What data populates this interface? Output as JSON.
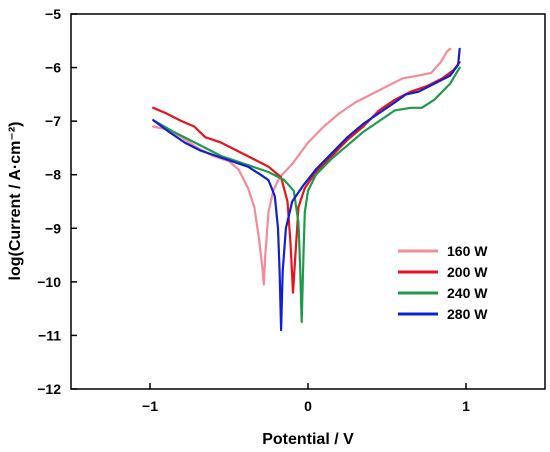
{
  "chart_data": {
    "type": "line",
    "title": "",
    "xlabel": "Potential / V",
    "ylabel": "log(Current / A·cm⁻²)",
    "xlim": [
      -1.5,
      1.5
    ],
    "ylim": [
      -12,
      -5
    ],
    "xticks": [
      -1,
      0,
      1
    ],
    "xtick_labels": [
      "−1",
      "0",
      "1"
    ],
    "yticks": [
      -12,
      -11,
      -10,
      -9,
      -8,
      -7,
      -6,
      -5
    ],
    "ytick_labels": [
      "−12",
      "−11",
      "−10",
      "−9",
      "−8",
      "−7",
      "−6",
      "−5"
    ],
    "grid": false,
    "legend_position": "center-right",
    "series": [
      {
        "name": "160 W",
        "color": "#f48a9a",
        "points": [
          [
            -0.98,
            -7.1
          ],
          [
            -0.9,
            -7.15
          ],
          [
            -0.8,
            -7.3
          ],
          [
            -0.7,
            -7.5
          ],
          [
            -0.6,
            -7.65
          ],
          [
            -0.5,
            -7.75
          ],
          [
            -0.44,
            -7.9
          ],
          [
            -0.38,
            -8.25
          ],
          [
            -0.34,
            -8.6
          ],
          [
            -0.31,
            -9.2
          ],
          [
            -0.29,
            -9.7
          ],
          [
            -0.28,
            -10.05
          ],
          [
            -0.27,
            -9.5
          ],
          [
            -0.25,
            -8.7
          ],
          [
            -0.22,
            -8.3
          ],
          [
            -0.18,
            -8.05
          ],
          [
            -0.1,
            -7.8
          ],
          [
            0.0,
            -7.4
          ],
          [
            0.1,
            -7.1
          ],
          [
            0.2,
            -6.85
          ],
          [
            0.3,
            -6.65
          ],
          [
            0.4,
            -6.5
          ],
          [
            0.5,
            -6.35
          ],
          [
            0.6,
            -6.2
          ],
          [
            0.7,
            -6.15
          ],
          [
            0.78,
            -6.1
          ],
          [
            0.84,
            -5.9
          ],
          [
            0.88,
            -5.7
          ],
          [
            0.9,
            -5.65
          ]
        ]
      },
      {
        "name": "200 W",
        "color": "#e8121c",
        "points": [
          [
            -0.98,
            -6.75
          ],
          [
            -0.9,
            -6.85
          ],
          [
            -0.8,
            -7.0
          ],
          [
            -0.72,
            -7.1
          ],
          [
            -0.65,
            -7.3
          ],
          [
            -0.55,
            -7.4
          ],
          [
            -0.45,
            -7.55
          ],
          [
            -0.35,
            -7.7
          ],
          [
            -0.25,
            -7.85
          ],
          [
            -0.17,
            -8.05
          ],
          [
            -0.13,
            -8.5
          ],
          [
            -0.11,
            -9.3
          ],
          [
            -0.095,
            -10.2
          ],
          [
            -0.08,
            -9.5
          ],
          [
            -0.06,
            -8.6
          ],
          [
            -0.02,
            -8.25
          ],
          [
            0.05,
            -7.95
          ],
          [
            0.15,
            -7.65
          ],
          [
            0.25,
            -7.35
          ],
          [
            0.35,
            -7.1
          ],
          [
            0.45,
            -6.8
          ],
          [
            0.55,
            -6.6
          ],
          [
            0.65,
            -6.45
          ],
          [
            0.75,
            -6.35
          ],
          [
            0.85,
            -6.2
          ],
          [
            0.92,
            -6.05
          ],
          [
            0.96,
            -5.9
          ]
        ]
      },
      {
        "name": "240 W",
        "color": "#1f9a4a",
        "points": [
          [
            -0.97,
            -7.0
          ],
          [
            -0.85,
            -7.2
          ],
          [
            -0.75,
            -7.35
          ],
          [
            -0.65,
            -7.5
          ],
          [
            -0.55,
            -7.65
          ],
          [
            -0.45,
            -7.75
          ],
          [
            -0.35,
            -7.85
          ],
          [
            -0.25,
            -7.95
          ],
          [
            -0.15,
            -8.1
          ],
          [
            -0.09,
            -8.3
          ],
          [
            -0.06,
            -8.9
          ],
          [
            -0.05,
            -9.7
          ],
          [
            -0.04,
            -10.75
          ],
          [
            -0.03,
            -9.6
          ],
          [
            -0.02,
            -8.7
          ],
          [
            0.0,
            -8.3
          ],
          [
            0.05,
            -8.0
          ],
          [
            0.15,
            -7.7
          ],
          [
            0.25,
            -7.45
          ],
          [
            0.35,
            -7.2
          ],
          [
            0.45,
            -7.0
          ],
          [
            0.55,
            -6.8
          ],
          [
            0.65,
            -6.75
          ],
          [
            0.72,
            -6.75
          ],
          [
            0.8,
            -6.6
          ],
          [
            0.9,
            -6.3
          ],
          [
            0.96,
            -6.0
          ]
        ]
      },
      {
        "name": "280 W",
        "color": "#1020d0",
        "points": [
          [
            -0.98,
            -6.98
          ],
          [
            -0.88,
            -7.2
          ],
          [
            -0.78,
            -7.4
          ],
          [
            -0.68,
            -7.55
          ],
          [
            -0.58,
            -7.65
          ],
          [
            -0.48,
            -7.75
          ],
          [
            -0.38,
            -7.85
          ],
          [
            -0.3,
            -8.0
          ],
          [
            -0.25,
            -8.1
          ],
          [
            -0.21,
            -8.4
          ],
          [
            -0.19,
            -9.0
          ],
          [
            -0.18,
            -9.8
          ],
          [
            -0.17,
            -10.9
          ],
          [
            -0.16,
            -9.8
          ],
          [
            -0.14,
            -9.0
          ],
          [
            -0.1,
            -8.5
          ],
          [
            -0.03,
            -8.2
          ],
          [
            0.05,
            -7.9
          ],
          [
            0.15,
            -7.6
          ],
          [
            0.25,
            -7.3
          ],
          [
            0.35,
            -7.05
          ],
          [
            0.45,
            -6.85
          ],
          [
            0.55,
            -6.65
          ],
          [
            0.62,
            -6.5
          ],
          [
            0.7,
            -6.45
          ],
          [
            0.8,
            -6.3
          ],
          [
            0.9,
            -6.15
          ],
          [
            0.95,
            -5.95
          ],
          [
            0.96,
            -5.65
          ]
        ]
      }
    ]
  }
}
